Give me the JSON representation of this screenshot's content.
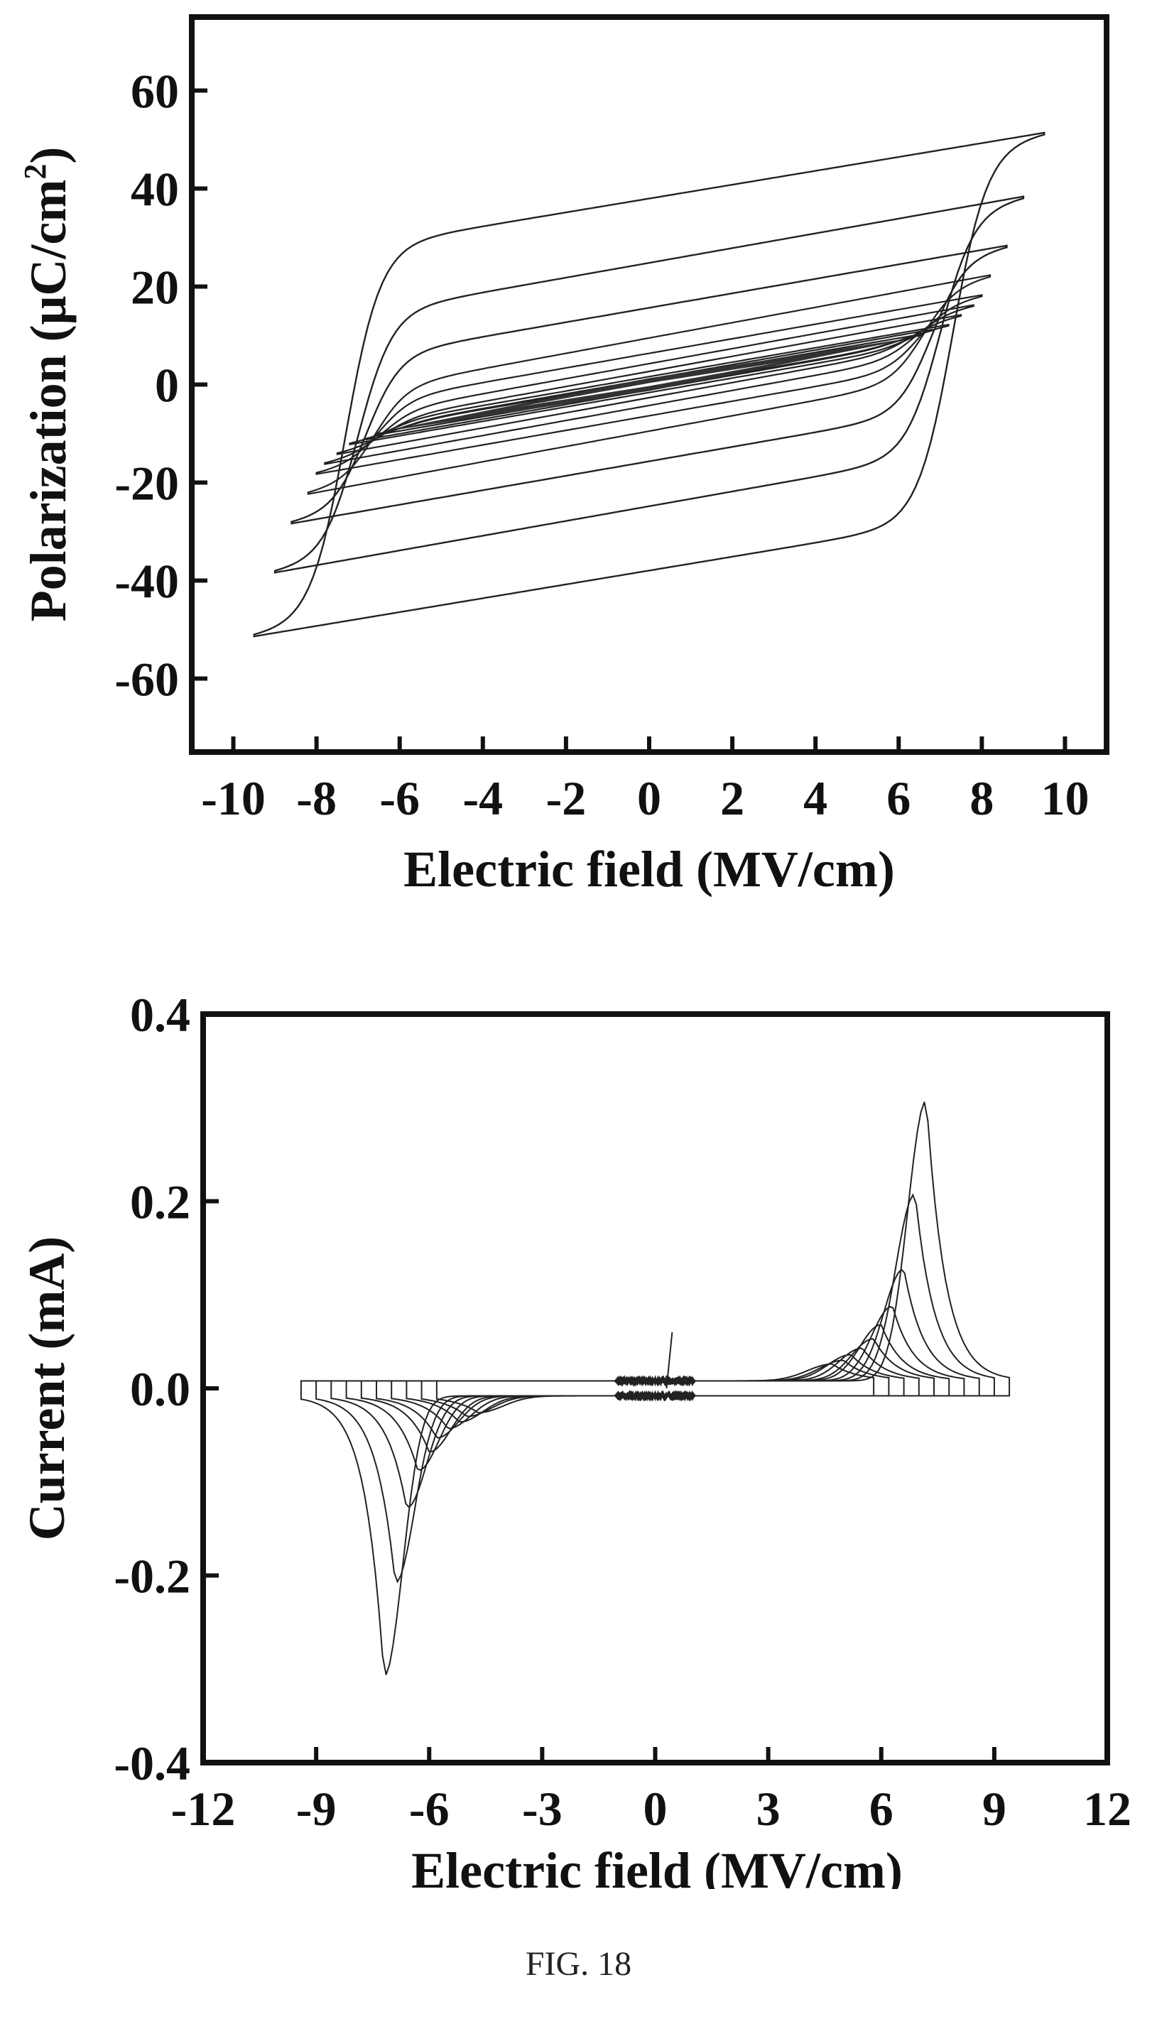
{
  "caption": "FIG. 18",
  "chart_data": [
    {
      "type": "line",
      "title": "",
      "xlabel": "Electric field (MV/cm)",
      "ylabel": "Polarization (μC/cm²)",
      "ylabel_main": "Polarization (μC/cm",
      "ylabel_sup": "2",
      "ylabel_end": ")",
      "xlim": [
        -11,
        11
      ],
      "ylim": [
        -75,
        75
      ],
      "x_ticks": [
        -10,
        -8,
        -6,
        -4,
        -2,
        0,
        2,
        4,
        6,
        8,
        10
      ],
      "y_ticks": [
        -60,
        -40,
        -20,
        0,
        20,
        40,
        60
      ],
      "x_tick_labels": [
        "-10",
        "-8",
        "-6",
        "-4",
        "-2",
        "0",
        "2",
        "4",
        "6",
        "8",
        "10"
      ],
      "y_tick_labels": [
        "-60",
        "-40",
        "-20",
        "0",
        "20",
        "40",
        "60"
      ],
      "series": [
        {
          "emax": 9.5,
          "pmax": 51,
          "pr": 37,
          "ec": 7.3
        },
        {
          "emax": 9.0,
          "pmax": 38,
          "pr": 24,
          "ec": 7.0
        },
        {
          "emax": 8.6,
          "pmax": 28,
          "pr": 15,
          "ec": 6.8
        },
        {
          "emax": 8.2,
          "pmax": 22,
          "pr": 9,
          "ec": 6.6
        },
        {
          "emax": 8.0,
          "pmax": 18,
          "pr": 6,
          "ec": 6.5
        },
        {
          "emax": 7.8,
          "pmax": 16,
          "pr": 4,
          "ec": 6.4
        },
        {
          "emax": 7.5,
          "pmax": 14,
          "pr": 2.5,
          "ec": 6.3
        },
        {
          "emax": 7.2,
          "pmax": 12,
          "pr": 1.5,
          "ec": 6.2
        },
        {
          "emax": 6.8,
          "pmax": 11,
          "pr": 1,
          "ec": 6.0
        },
        {
          "emax": 6.5,
          "pmax": 10,
          "pr": 0.7,
          "ec": 5.8
        }
      ]
    },
    {
      "type": "line",
      "title": "",
      "xlabel": "Electric field (MV/cm)",
      "ylabel": "Current (mA)",
      "xlim": [
        -12,
        12
      ],
      "ylim": [
        -0.4,
        0.4
      ],
      "x_ticks": [
        -12,
        -9,
        -6,
        -3,
        0,
        3,
        6,
        9,
        12
      ],
      "y_ticks": [
        -0.4,
        -0.2,
        0.0,
        0.2,
        0.4
      ],
      "x_tick_labels": [
        "-12",
        "-9",
        "-6",
        "-3",
        "0",
        "3",
        "6",
        "9",
        "12"
      ],
      "y_tick_labels": [
        "-0.4",
        "-0.2",
        "0.0",
        "0.2",
        "0.4"
      ],
      "series": [
        {
          "emax": 9.4,
          "peak_e": 7.2,
          "peak_i": 0.3
        },
        {
          "emax": 9.0,
          "peak_e": 6.9,
          "peak_i": 0.2
        },
        {
          "emax": 8.6,
          "peak_e": 6.6,
          "peak_i": 0.12
        },
        {
          "emax": 8.2,
          "peak_e": 6.3,
          "peak_i": 0.08
        },
        {
          "emax": 7.8,
          "peak_e": 6.0,
          "peak_i": 0.06
        },
        {
          "emax": 7.4,
          "peak_e": 5.8,
          "peak_i": 0.045
        },
        {
          "emax": 7.0,
          "peak_e": 5.5,
          "peak_i": 0.035
        },
        {
          "emax": 6.6,
          "peak_e": 5.2,
          "peak_i": 0.028
        },
        {
          "emax": 6.2,
          "peak_e": 5.0,
          "peak_i": 0.022
        },
        {
          "emax": 5.8,
          "peak_e": 4.7,
          "peak_i": 0.018
        }
      ]
    }
  ]
}
